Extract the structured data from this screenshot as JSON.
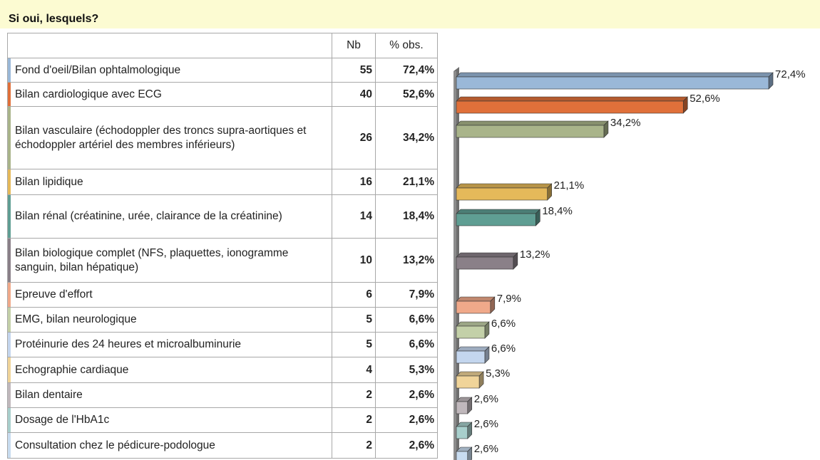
{
  "title": "Si oui, lesquels?",
  "header": {
    "nb": "Nb",
    "pct": "% obs."
  },
  "rows": [
    {
      "label": "Fond d'oeil/Bilan ophtalmologique",
      "nb": 55,
      "pct": 72.4,
      "pct_label": "72,4%",
      "color": "#9ab8d8"
    },
    {
      "label": "Bilan cardiologique avec ECG",
      "nb": 40,
      "pct": 52.6,
      "pct_label": "52,6%",
      "color": "#e0703a"
    },
    {
      "label": "Bilan vasculaire (échodoppler des troncs supra-aortiques et échodoppler artériel des membres inférieurs)",
      "nb": 26,
      "pct": 34.2,
      "pct_label": "34,2%",
      "color": "#a9b48a"
    },
    {
      "label": "Bilan lipidique",
      "nb": 16,
      "pct": 21.1,
      "pct_label": "21,1%",
      "color": "#e5b95a"
    },
    {
      "label": "Bilan rénal (créatinine, urée, clairance de la créatinine)",
      "nb": 14,
      "pct": 18.4,
      "pct_label": "18,4%",
      "color": "#5f9e93"
    },
    {
      "label": "Bilan biologique complet (NFS, plaquettes, ionogramme sanguin, bilan hépatique)",
      "nb": 10,
      "pct": 13.2,
      "pct_label": "13,2%",
      "color": "#8a8088"
    },
    {
      "label": "Epreuve d'effort",
      "nb": 6,
      "pct": 7.9,
      "pct_label": "7,9%",
      "color": "#f0a98a"
    },
    {
      "label": "EMG, bilan neurologique",
      "nb": 5,
      "pct": 6.6,
      "pct_label": "6,6%",
      "color": "#c3d0a8"
    },
    {
      "label": "Protéinurie des 24 heures et microalbuminurie",
      "nb": 5,
      "pct": 6.6,
      "pct_label": "6,6%",
      "color": "#c4d6ee"
    },
    {
      "label": "Echographie cardiaque",
      "nb": 4,
      "pct": 5.3,
      "pct_label": "5,3%",
      "color": "#f0d499"
    },
    {
      "label": "Bilan dentaire",
      "nb": 2,
      "pct": 2.6,
      "pct_label": "2,6%",
      "color": "#c0b8bc"
    },
    {
      "label": "Dosage de l'HbA1c",
      "nb": 2,
      "pct": 2.6,
      "pct_label": "2,6%",
      "color": "#a8cfcc"
    },
    {
      "label": "Consultation chez le pédicure-podologue",
      "nb": 2,
      "pct": 2.6,
      "pct_label": "2,6%",
      "color": "#c8dcf0"
    }
  ]
}
